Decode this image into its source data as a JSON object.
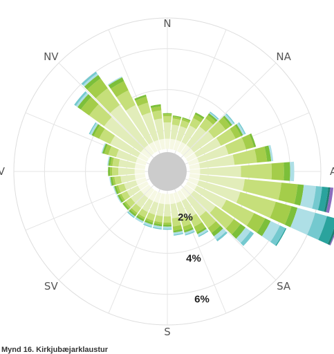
{
  "caption": "Mynd 16. Kirkjubæjarklaustur",
  "chart_data": {
    "type": "polar-stacked-bar",
    "title": "Mynd 16. Kirkjubæjarklaustur",
    "direction_labels": [
      "N",
      "NA",
      "A",
      "SA",
      "S",
      "SV",
      "V",
      "NV"
    ],
    "ring_labels": [
      "2%",
      "4%",
      "6%"
    ],
    "rlim": [
      0,
      7.5
    ],
    "ring_ticks": [
      2,
      4,
      6
    ],
    "sectors": 36,
    "sector_step_deg": 10,
    "calm_percent": 1.1,
    "class_colors": [
      "#f6f8e3",
      "#e2edba",
      "#c6df7a",
      "#a4cd4a",
      "#7cbf3a",
      "#aedfe6",
      "#74c9cf",
      "#2aa39d",
      "#1e7f74",
      "#8d6dbd"
    ],
    "series": [
      {
        "class": 1,
        "values": [
          0.5,
          0.5,
          0.5,
          0.5,
          0.5,
          0.5,
          0.5,
          0.5,
          0.5,
          0.5,
          0.5,
          0.5,
          0.5,
          0.5,
          0.5,
          0.5,
          0.5,
          0.5,
          0.5,
          0.5,
          0.5,
          0.5,
          0.5,
          0.5,
          0.5,
          0.5,
          0.5,
          0.5,
          0.5,
          0.5,
          0.5,
          0.5,
          0.5,
          0.5,
          0.5,
          0.5
        ]
      },
      {
        "class": 2,
        "values": [
          0.8,
          0.7,
          0.7,
          0.9,
          1.1,
          1.2,
          1.3,
          1.5,
          1.7,
          2.0,
          2.2,
          2.1,
          1.6,
          1.3,
          1.1,
          0.9,
          0.8,
          0.7,
          0.6,
          0.6,
          0.6,
          0.6,
          0.6,
          0.6,
          0.6,
          0.6,
          0.7,
          0.8,
          0.8,
          1.0,
          1.5,
          2.2,
          2.4,
          2.0,
          1.4,
          1.0
        ]
      },
      {
        "class": 3,
        "values": [
          0.3,
          0.3,
          0.3,
          0.4,
          0.5,
          0.7,
          0.8,
          0.9,
          1.1,
          1.5,
          1.8,
          1.8,
          1.5,
          1.1,
          0.7,
          0.5,
          0.4,
          0.4,
          0.3,
          0.3,
          0.3,
          0.3,
          0.3,
          0.3,
          0.3,
          0.3,
          0.3,
          0.3,
          0.3,
          0.4,
          0.6,
          0.9,
          1.0,
          0.8,
          0.5,
          0.4
        ]
      },
      {
        "class": 4,
        "values": [
          0.1,
          0.1,
          0.1,
          0.2,
          0.2,
          0.3,
          0.3,
          0.4,
          0.5,
          0.6,
          0.8,
          0.8,
          0.6,
          0.4,
          0.3,
          0.3,
          0.2,
          0.2,
          0.1,
          0.1,
          0.1,
          0.1,
          0.1,
          0.1,
          0.1,
          0.1,
          0.1,
          0.1,
          0.1,
          0.2,
          0.3,
          0.5,
          0.6,
          0.5,
          0.3,
          0.2
        ]
      },
      {
        "class": 5,
        "values": [
          0.05,
          0.05,
          0.05,
          0.1,
          0.1,
          0.1,
          0.1,
          0.1,
          0.2,
          0.3,
          0.3,
          0.3,
          0.3,
          0.3,
          0.2,
          0.1,
          0.1,
          0.1,
          0.1,
          0.1,
          0.1,
          0.1,
          0.1,
          0.1,
          0.1,
          0.1,
          0.1,
          0.1,
          0.1,
          0.1,
          0.1,
          0.2,
          0.2,
          0.2,
          0.1,
          0.1
        ]
      },
      {
        "class": 6,
        "values": [
          0.0,
          0.0,
          0.0,
          0.0,
          0.05,
          0.1,
          0.1,
          0.0,
          0.1,
          0.2,
          0.6,
          0.9,
          0.5,
          0.3,
          0.2,
          0.1,
          0.1,
          0.1,
          0.1,
          0.1,
          0.1,
          0.1,
          0.05,
          0.0,
          0.05,
          0.05,
          0.05,
          0.0,
          0.05,
          0.05,
          0.1,
          0.1,
          0.1,
          0.05,
          0.0,
          0.0
        ]
      },
      {
        "class": 7,
        "values": [
          0.0,
          0.0,
          0.0,
          0.0,
          0.05,
          0.05,
          0.05,
          0.0,
          0.0,
          0.0,
          0.3,
          0.6,
          0.3,
          0.2,
          0.1,
          0.05,
          0.05,
          0.05,
          0.05,
          0.05,
          0.05,
          0.0,
          0.05,
          0.0,
          0.0,
          0.0,
          0.0,
          0.0,
          0.0,
          0.0,
          0.05,
          0.1,
          0.1,
          0.0,
          0.0,
          0.0
        ]
      },
      {
        "class": 8,
        "values": [
          0.0,
          0.0,
          0.0,
          0.0,
          0.0,
          0.0,
          0.0,
          0.0,
          0.0,
          0.0,
          0.3,
          0.5,
          0.05,
          0.0,
          0.0,
          0.0,
          0.0,
          0.0,
          0.0,
          0.0,
          0.0,
          0.0,
          0.0,
          0.0,
          0.0,
          0.0,
          0.0,
          0.0,
          0.0,
          0.0,
          0.0,
          0.0,
          0.0,
          0.0,
          0.0,
          0.0
        ]
      },
      {
        "class": 9,
        "values": [
          0.0,
          0.0,
          0.0,
          0.0,
          0.0,
          0.0,
          0.0,
          0.0,
          0.0,
          0.0,
          0.1,
          0.1,
          0.0,
          0.0,
          0.0,
          0.0,
          0.0,
          0.0,
          0.0,
          0.0,
          0.0,
          0.0,
          0.0,
          0.0,
          0.0,
          0.0,
          0.0,
          0.0,
          0.0,
          0.0,
          0.0,
          0.0,
          0.0,
          0.0,
          0.0,
          0.0
        ]
      },
      {
        "class": 10,
        "values": [
          0.0,
          0.0,
          0.0,
          0.0,
          0.0,
          0.0,
          0.0,
          0.0,
          0.0,
          0.0,
          0.15,
          0.05,
          0.0,
          0.0,
          0.0,
          0.0,
          0.0,
          0.0,
          0.0,
          0.0,
          0.0,
          0.0,
          0.0,
          0.0,
          0.0,
          0.0,
          0.0,
          0.0,
          0.0,
          0.0,
          0.0,
          0.0,
          0.0,
          0.0,
          0.0,
          0.0
        ]
      }
    ],
    "grid": true,
    "legend": "none"
  }
}
